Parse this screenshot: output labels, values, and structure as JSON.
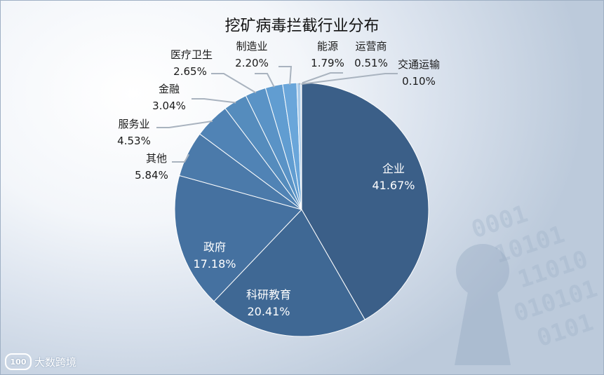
{
  "chart_data": {
    "type": "pie",
    "title": "挖矿病毒拦截行业分布",
    "slices": [
      {
        "name": "企业",
        "value": 41.67,
        "label": "41.67%",
        "color": "#3b5f88"
      },
      {
        "name": "科研教育",
        "value": 20.41,
        "label": "20.41%",
        "color": "#3f6894"
      },
      {
        "name": "政府",
        "value": 17.18,
        "label": "17.18%",
        "color": "#4571a0"
      },
      {
        "name": "其他",
        "value": 5.84,
        "label": "5.84%",
        "color": "#4b7aaa"
      },
      {
        "name": "服务业",
        "value": 4.53,
        "label": "4.53%",
        "color": "#5083b5"
      },
      {
        "name": "金融",
        "value": 3.04,
        "label": "3.04%",
        "color": "#558cbd"
      },
      {
        "name": "医疗卫生",
        "value": 2.65,
        "label": "2.65%",
        "color": "#5a93c6"
      },
      {
        "name": "制造业",
        "value": 2.2,
        "label": "2.20%",
        "color": "#619dd1"
      },
      {
        "name": "能源",
        "value": 1.79,
        "label": "1.79%",
        "color": "#6aa6da"
      },
      {
        "name": "运营商",
        "value": 0.51,
        "label": "0.51%",
        "color": "#aacbe9"
      },
      {
        "name": "交通运输",
        "value": 0.1,
        "label": "0.10%",
        "color": "#dbe8f5"
      }
    ]
  },
  "watermark": {
    "text": "大数跨境",
    "logo": "100"
  }
}
